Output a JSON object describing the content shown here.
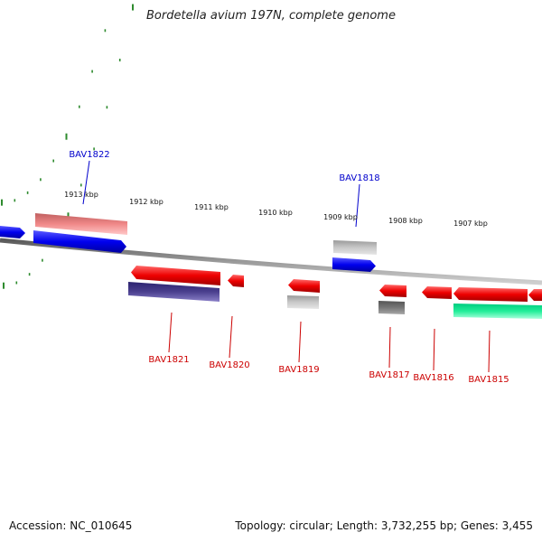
{
  "title": "Bordetella avium 197N, complete genome",
  "footer": {
    "accession": "Accession: NC_010645",
    "topology": "Topology: circular; Length: 3,732,255 bp; Genes: 3,455"
  },
  "colors": {
    "backbone": "#8a8a8a",
    "tick": "#2e8b2e",
    "label_forward": "#0000cc",
    "label_reverse": "#cc0000",
    "kbp_label": "#111111"
  },
  "kbp_marks": [
    "1913 kbp",
    "1912 kbp",
    "1911 kbp",
    "1910 kbp",
    "1909 kbp",
    "1908 kbp",
    "1907 kbp"
  ],
  "gene_labels": [
    {
      "text": "BAV1822",
      "strand": "forward"
    },
    {
      "text": "BAV1818",
      "strand": "forward"
    },
    {
      "text": "BAV1821",
      "strand": "reverse"
    },
    {
      "text": "BAV1820",
      "strand": "reverse"
    },
    {
      "text": "BAV1819",
      "strand": "reverse"
    },
    {
      "text": "BAV1817",
      "strand": "reverse"
    },
    {
      "text": "BAV1816",
      "strand": "reverse"
    },
    {
      "text": "BAV1815",
      "strand": "reverse"
    }
  ]
}
